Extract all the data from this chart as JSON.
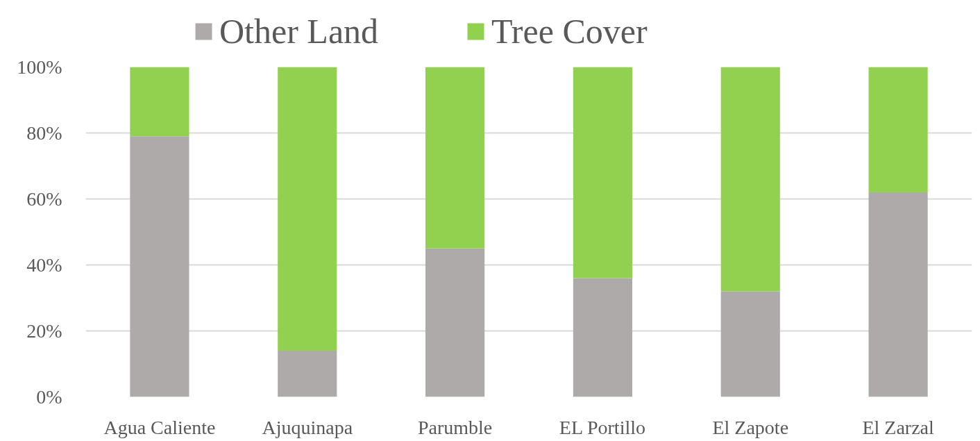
{
  "chart_data": {
    "type": "bar",
    "stacked": true,
    "categories": [
      "Agua Caliente",
      "Ajuquinapa",
      "Parumble",
      "EL Portillo",
      "El Zapote",
      "El Zarzal"
    ],
    "series": [
      {
        "name": "Other Land",
        "color": "#aeaaaa",
        "values": [
          79,
          14,
          45,
          36,
          32,
          62
        ]
      },
      {
        "name": "Tree Cover",
        "color": "#92d050",
        "values": [
          21,
          86,
          55,
          64,
          68,
          38
        ]
      }
    ],
    "ylim": [
      0,
      100
    ],
    "yticks": [
      {
        "value": 0,
        "label": "0%"
      },
      {
        "value": 20,
        "label": "20%"
      },
      {
        "value": 40,
        "label": "40%"
      },
      {
        "value": 60,
        "label": "60%"
      },
      {
        "value": 80,
        "label": "80%"
      },
      {
        "value": 100,
        "label": "100%"
      }
    ],
    "grid": "y",
    "legend": "top"
  }
}
